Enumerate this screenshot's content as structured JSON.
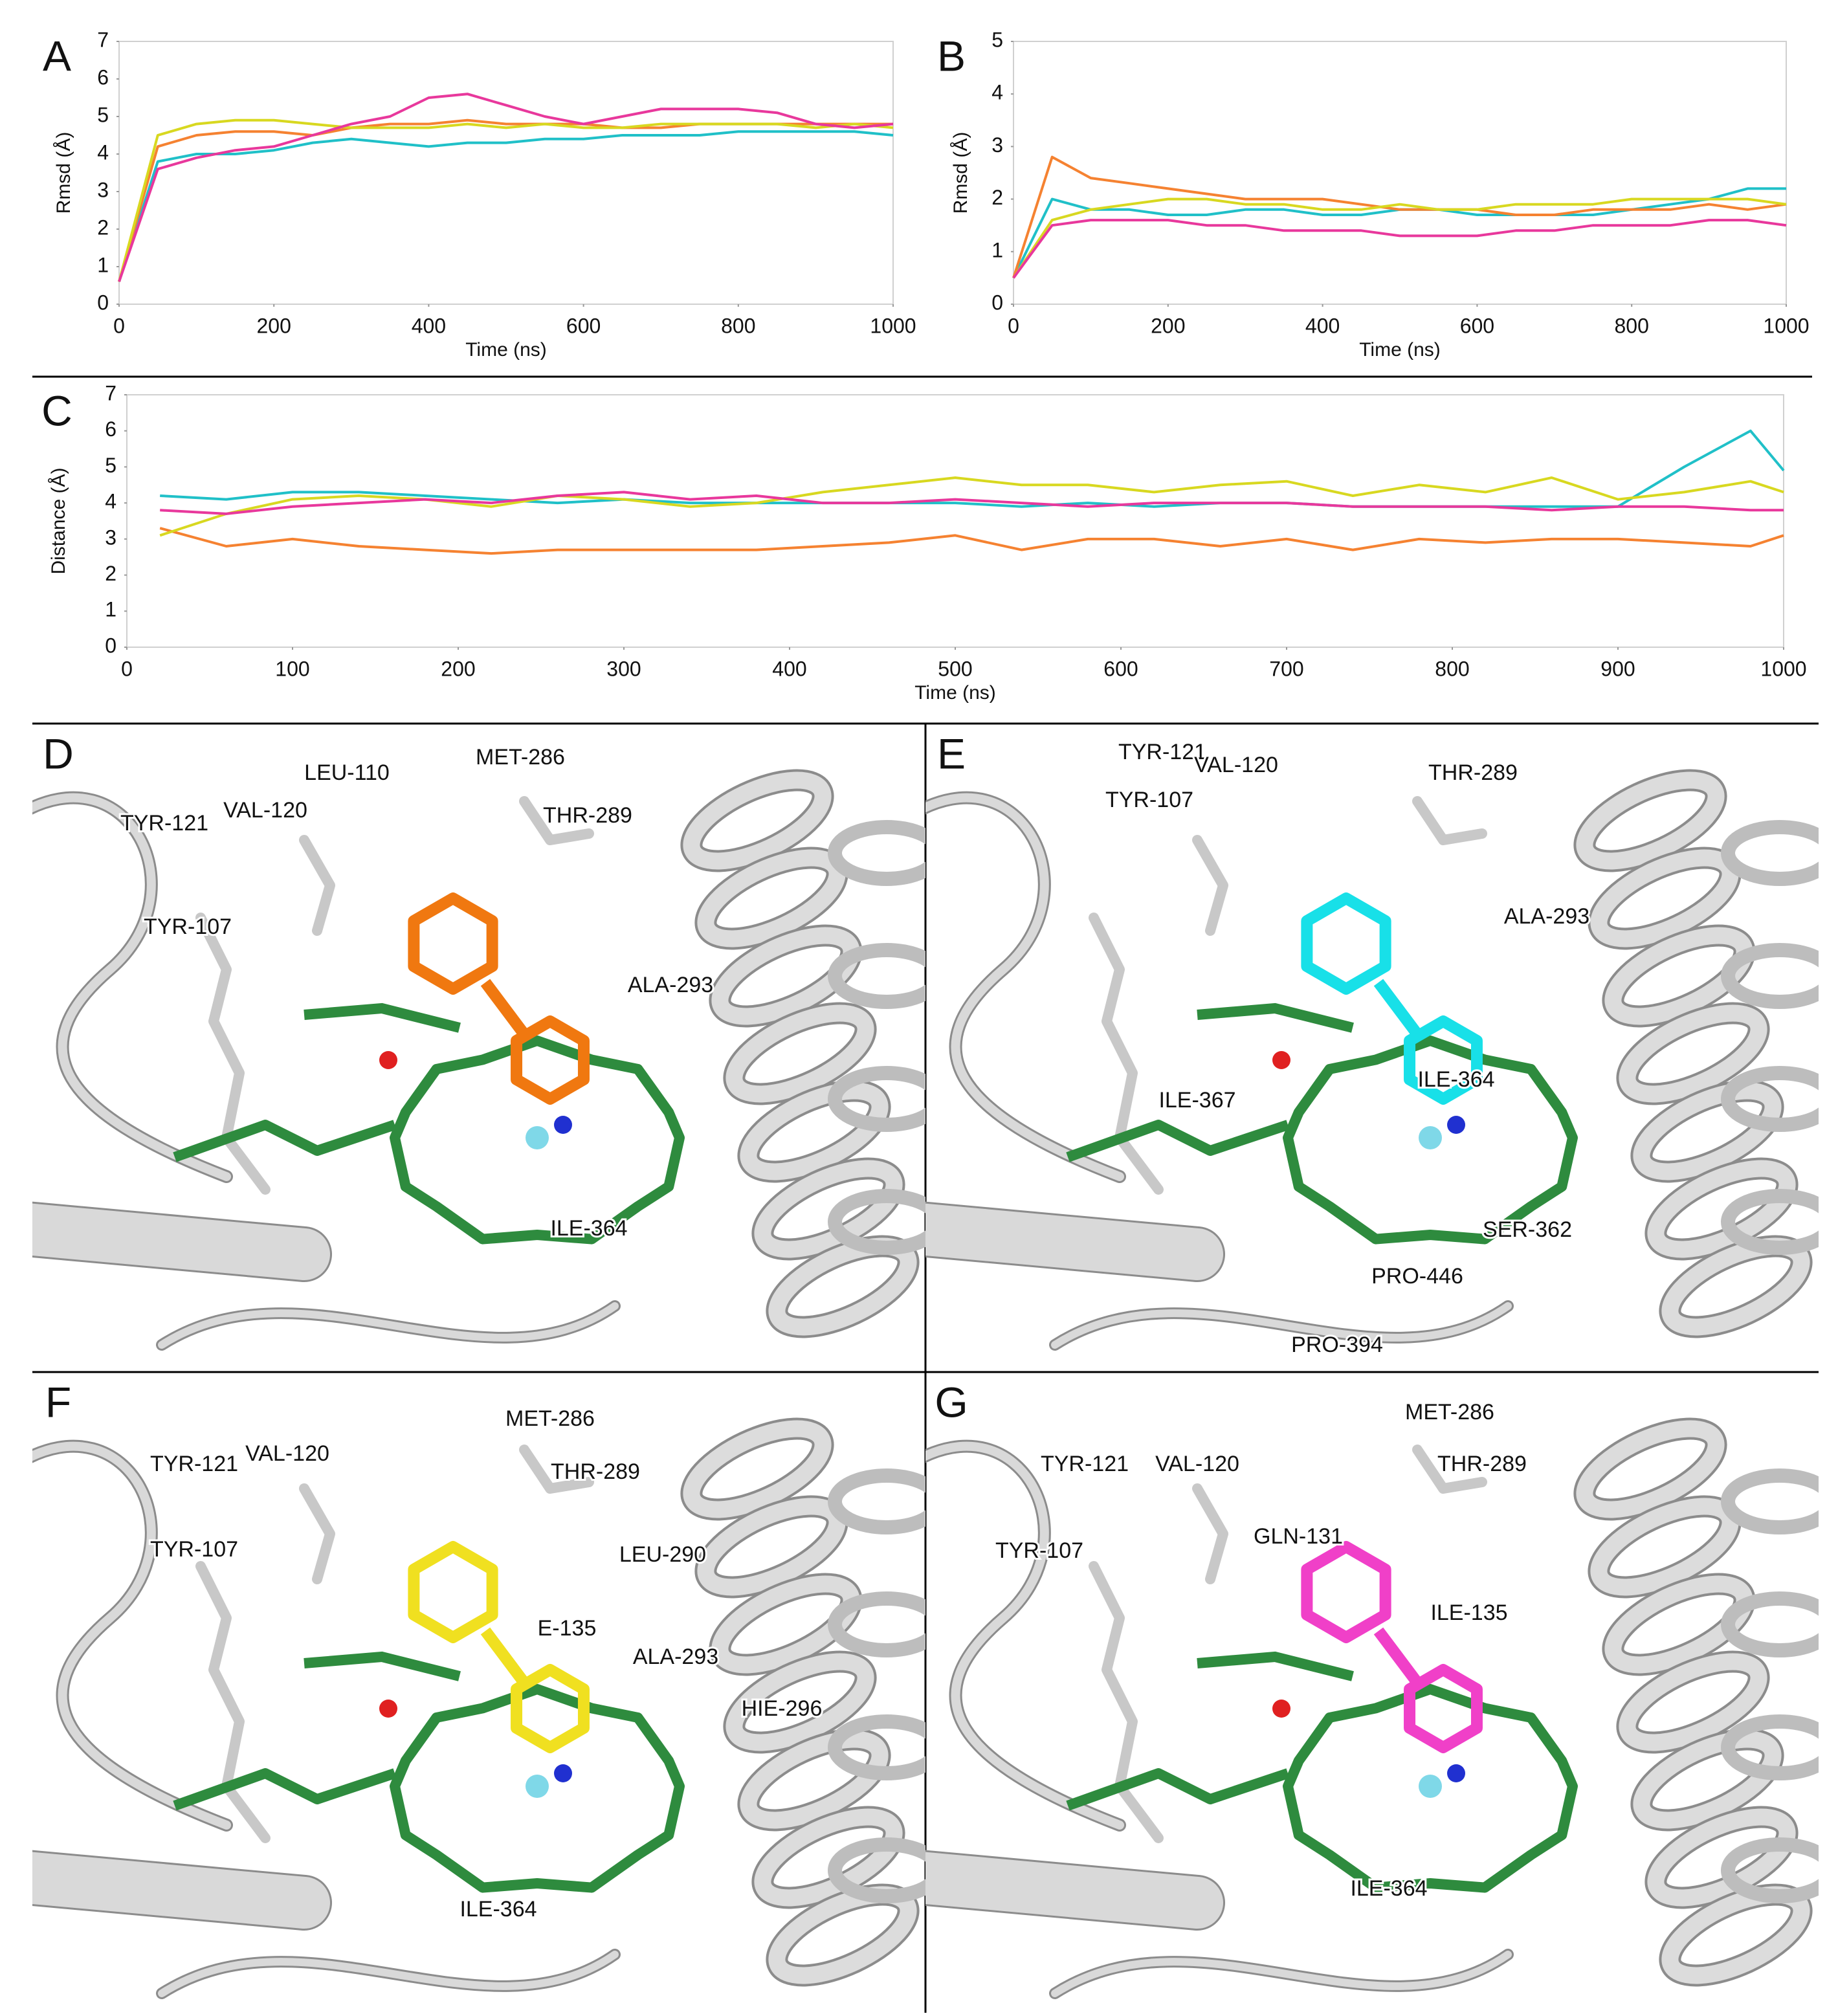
{
  "chart_data": [
    {
      "type": "line",
      "panel": "A",
      "ylabel": "Rmsd (Å)",
      "xlabel": "Time (ns)",
      "x": [
        0,
        50,
        100,
        150,
        200,
        250,
        300,
        350,
        400,
        450,
        500,
        550,
        600,
        650,
        700,
        750,
        800,
        850,
        900,
        950,
        1000
      ],
      "xlim": [
        0,
        1000
      ],
      "xticks": [
        0,
        200,
        400,
        600,
        800,
        1000
      ],
      "ylim": [
        0,
        7
      ],
      "yticks": [
        0,
        1,
        2,
        3,
        4,
        5,
        6,
        7
      ],
      "series": [
        {
          "color": "#20c0c8",
          "values": [
            0.6,
            3.8,
            4.0,
            4.0,
            4.1,
            4.3,
            4.4,
            4.3,
            4.2,
            4.3,
            4.3,
            4.4,
            4.4,
            4.5,
            4.5,
            4.5,
            4.6,
            4.6,
            4.6,
            4.6,
            4.5
          ]
        },
        {
          "color": "#f58231",
          "values": [
            0.6,
            4.2,
            4.5,
            4.6,
            4.6,
            4.5,
            4.7,
            4.8,
            4.8,
            4.9,
            4.8,
            4.8,
            4.8,
            4.7,
            4.7,
            4.8,
            4.8,
            4.8,
            4.8,
            4.8,
            4.8
          ]
        },
        {
          "color": "#d8d820",
          "values": [
            0.6,
            4.5,
            4.8,
            4.9,
            4.9,
            4.8,
            4.7,
            4.7,
            4.7,
            4.8,
            4.7,
            4.8,
            4.7,
            4.7,
            4.8,
            4.8,
            4.8,
            4.8,
            4.7,
            4.8,
            4.7
          ]
        },
        {
          "color": "#e8389c",
          "values": [
            0.6,
            3.6,
            3.9,
            4.1,
            4.2,
            4.5,
            4.8,
            5.0,
            5.5,
            5.6,
            5.3,
            5.0,
            4.8,
            5.0,
            5.2,
            5.2,
            5.2,
            5.1,
            4.8,
            4.7,
            4.8
          ]
        }
      ]
    },
    {
      "type": "line",
      "panel": "B",
      "ylabel": "Rmsd (Å)",
      "xlabel": "Time (ns)",
      "x": [
        0,
        50,
        100,
        150,
        200,
        250,
        300,
        350,
        400,
        450,
        500,
        550,
        600,
        650,
        700,
        750,
        800,
        850,
        900,
        950,
        1000
      ],
      "xlim": [
        0,
        1000
      ],
      "xticks": [
        0,
        200,
        400,
        600,
        800,
        1000
      ],
      "ylim": [
        0,
        5
      ],
      "yticks": [
        0,
        1,
        2,
        3,
        4,
        5
      ],
      "series": [
        {
          "color": "#20c0c8",
          "values": [
            0.5,
            2.0,
            1.8,
            1.8,
            1.7,
            1.7,
            1.8,
            1.8,
            1.7,
            1.7,
            1.8,
            1.8,
            1.7,
            1.7,
            1.7,
            1.7,
            1.8,
            1.9,
            2.0,
            2.2,
            2.2
          ]
        },
        {
          "color": "#f58231",
          "values": [
            0.5,
            2.8,
            2.4,
            2.3,
            2.2,
            2.1,
            2.0,
            2.0,
            2.0,
            1.9,
            1.8,
            1.8,
            1.8,
            1.7,
            1.7,
            1.8,
            1.8,
            1.8,
            1.9,
            1.8,
            1.9
          ]
        },
        {
          "color": "#d8d820",
          "values": [
            0.5,
            1.6,
            1.8,
            1.9,
            2.0,
            2.0,
            1.9,
            1.9,
            1.8,
            1.8,
            1.9,
            1.8,
            1.8,
            1.9,
            1.9,
            1.9,
            2.0,
            2.0,
            2.0,
            2.0,
            1.9
          ]
        },
        {
          "color": "#e8389c",
          "values": [
            0.5,
            1.5,
            1.6,
            1.6,
            1.6,
            1.5,
            1.5,
            1.4,
            1.4,
            1.4,
            1.3,
            1.3,
            1.3,
            1.4,
            1.4,
            1.5,
            1.5,
            1.5,
            1.6,
            1.6,
            1.5
          ]
        }
      ]
    },
    {
      "type": "line",
      "panel": "C",
      "ylabel": "Distance (Å)",
      "xlabel": "Time (ns)",
      "x": [
        20,
        60,
        100,
        140,
        180,
        220,
        260,
        300,
        340,
        380,
        420,
        460,
        500,
        540,
        580,
        620,
        660,
        700,
        740,
        780,
        820,
        860,
        900,
        940,
        980,
        1000
      ],
      "xlim": [
        0,
        1000
      ],
      "xticks": [
        0,
        100,
        200,
        300,
        400,
        500,
        600,
        700,
        800,
        900,
        1000
      ],
      "ylim": [
        0,
        7
      ],
      "yticks": [
        0,
        1,
        2,
        3,
        4,
        5,
        6,
        7
      ],
      "series": [
        {
          "color": "#20c0c8",
          "values": [
            4.2,
            4.1,
            4.3,
            4.3,
            4.2,
            4.1,
            4.0,
            4.1,
            4.0,
            4.0,
            4.0,
            4.0,
            4.0,
            3.9,
            4.0,
            3.9,
            4.0,
            4.0,
            3.9,
            3.9,
            3.9,
            3.9,
            3.9,
            5.0,
            6.0,
            4.9
          ]
        },
        {
          "color": "#f58231",
          "values": [
            3.3,
            2.8,
            3.0,
            2.8,
            2.7,
            2.6,
            2.7,
            2.7,
            2.7,
            2.7,
            2.8,
            2.9,
            3.1,
            2.7,
            3.0,
            3.0,
            2.8,
            3.0,
            2.7,
            3.0,
            2.9,
            3.0,
            3.0,
            2.9,
            2.8,
            3.1
          ]
        },
        {
          "color": "#d8d820",
          "values": [
            3.1,
            3.7,
            4.1,
            4.2,
            4.1,
            3.9,
            4.2,
            4.1,
            3.9,
            4.0,
            4.3,
            4.5,
            4.7,
            4.5,
            4.5,
            4.3,
            4.5,
            4.6,
            4.2,
            4.5,
            4.3,
            4.7,
            4.1,
            4.3,
            4.6,
            4.3
          ]
        },
        {
          "color": "#e8389c",
          "values": [
            3.8,
            3.7,
            3.9,
            4.0,
            4.1,
            4.0,
            4.2,
            4.3,
            4.1,
            4.2,
            4.0,
            4.0,
            4.1,
            4.0,
            3.9,
            4.0,
            4.0,
            4.0,
            3.9,
            3.9,
            3.9,
            3.8,
            3.9,
            3.9,
            3.8,
            3.8
          ]
        }
      ]
    }
  ],
  "panels": [
    {
      "panel": "D",
      "labels": [
        "LEU-110",
        "MET-286",
        "VAL-120",
        "THR-289",
        "TYR-121",
        "TYR-107",
        "ALA-293",
        "ILE-364"
      ]
    },
    {
      "panel": "E",
      "labels": [
        "TYR-121",
        "VAL-120",
        "THR-289",
        "TYR-107",
        "ALA-293",
        "ILE-364",
        "ILE-367",
        "SER-362",
        "PRO-446",
        "PRO-394"
      ]
    },
    {
      "panel": "F",
      "labels": [
        "MET-286",
        "TYR-121",
        "VAL-120",
        "THR-289",
        "TYR-107",
        "LEU-290",
        "E-135",
        "ALA-293",
        "HIE-296",
        "ILE-364"
      ]
    },
    {
      "panel": "G",
      "labels": [
        "MET-286",
        "TYR-121",
        "VAL-120",
        "THR-289",
        "GLN-131",
        "TYR-107",
        "ILE-135",
        "ILE-364"
      ]
    }
  ]
}
